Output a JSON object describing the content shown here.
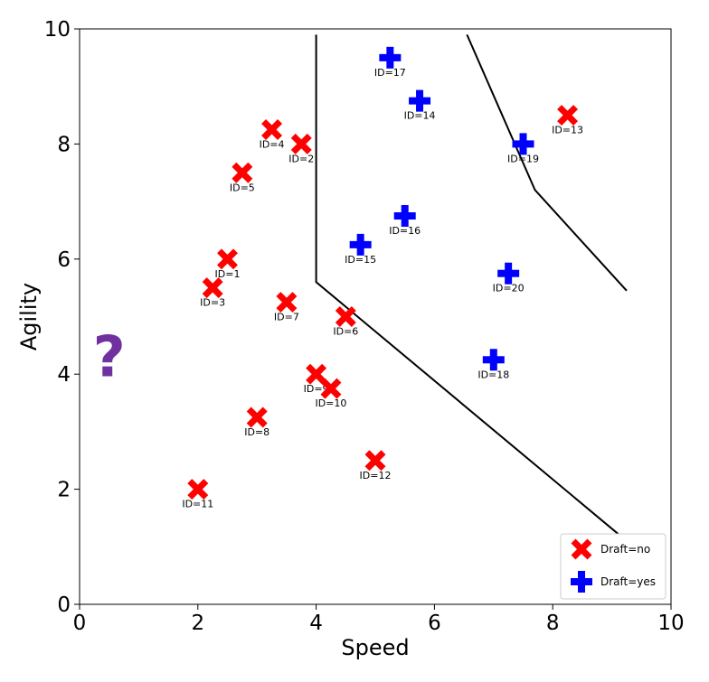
{
  "chart_data": {
    "type": "scatter",
    "xlabel": "Speed",
    "ylabel": "Agility",
    "xlim": [
      0,
      10
    ],
    "ylim": [
      0,
      10
    ],
    "xticks": [
      "0",
      "2",
      "4",
      "6",
      "8",
      "10"
    ],
    "yticks": [
      "0",
      "2",
      "4",
      "6",
      "8",
      "10"
    ],
    "grid": false,
    "legend_position": "bottom-right",
    "series": [
      {
        "name": "Draft=no",
        "marker": "x",
        "color": "#ff0000",
        "points": [
          {
            "label": "ID=1",
            "x": 2.5,
            "y": 6.0
          },
          {
            "label": "ID=2",
            "x": 3.75,
            "y": 8.0
          },
          {
            "label": "ID=3",
            "x": 2.25,
            "y": 5.5
          },
          {
            "label": "ID=4",
            "x": 3.25,
            "y": 8.25
          },
          {
            "label": "ID=5",
            "x": 2.75,
            "y": 7.5
          },
          {
            "label": "ID=6",
            "x": 4.5,
            "y": 5.0
          },
          {
            "label": "ID=7",
            "x": 3.5,
            "y": 5.25
          },
          {
            "label": "ID=8",
            "x": 3.0,
            "y": 3.25
          },
          {
            "label": "ID=9",
            "x": 4.0,
            "y": 4.0
          },
          {
            "label": "ID=10",
            "x": 4.25,
            "y": 3.75
          },
          {
            "label": "ID=11",
            "x": 2.0,
            "y": 2.0
          },
          {
            "label": "ID=12",
            "x": 5.0,
            "y": 2.5
          },
          {
            "label": "ID=13",
            "x": 8.25,
            "y": 8.5
          }
        ]
      },
      {
        "name": "Draft=yes",
        "marker": "plus",
        "color": "#0000ff",
        "points": [
          {
            "label": "ID=14",
            "x": 5.75,
            "y": 8.75
          },
          {
            "label": "ID=15",
            "x": 4.75,
            "y": 6.25
          },
          {
            "label": "ID=16",
            "x": 5.5,
            "y": 6.75
          },
          {
            "label": "ID=17",
            "x": 5.25,
            "y": 9.5
          },
          {
            "label": "ID=18",
            "x": 7.0,
            "y": 4.25
          },
          {
            "label": "ID=19",
            "x": 7.5,
            "y": 8.0
          },
          {
            "label": "ID=20",
            "x": 7.25,
            "y": 5.75
          }
        ]
      }
    ],
    "boundaries": [
      [
        [
          4.0,
          9.9
        ],
        [
          4.0,
          5.6
        ],
        [
          9.25,
          1.1
        ]
      ],
      [
        [
          6.55,
          9.9
        ],
        [
          7.7,
          7.2
        ],
        [
          9.25,
          5.45
        ]
      ]
    ],
    "query_point": {
      "symbol": "?",
      "x": 0.5,
      "y": 4.25,
      "color": "#7030a0"
    }
  }
}
